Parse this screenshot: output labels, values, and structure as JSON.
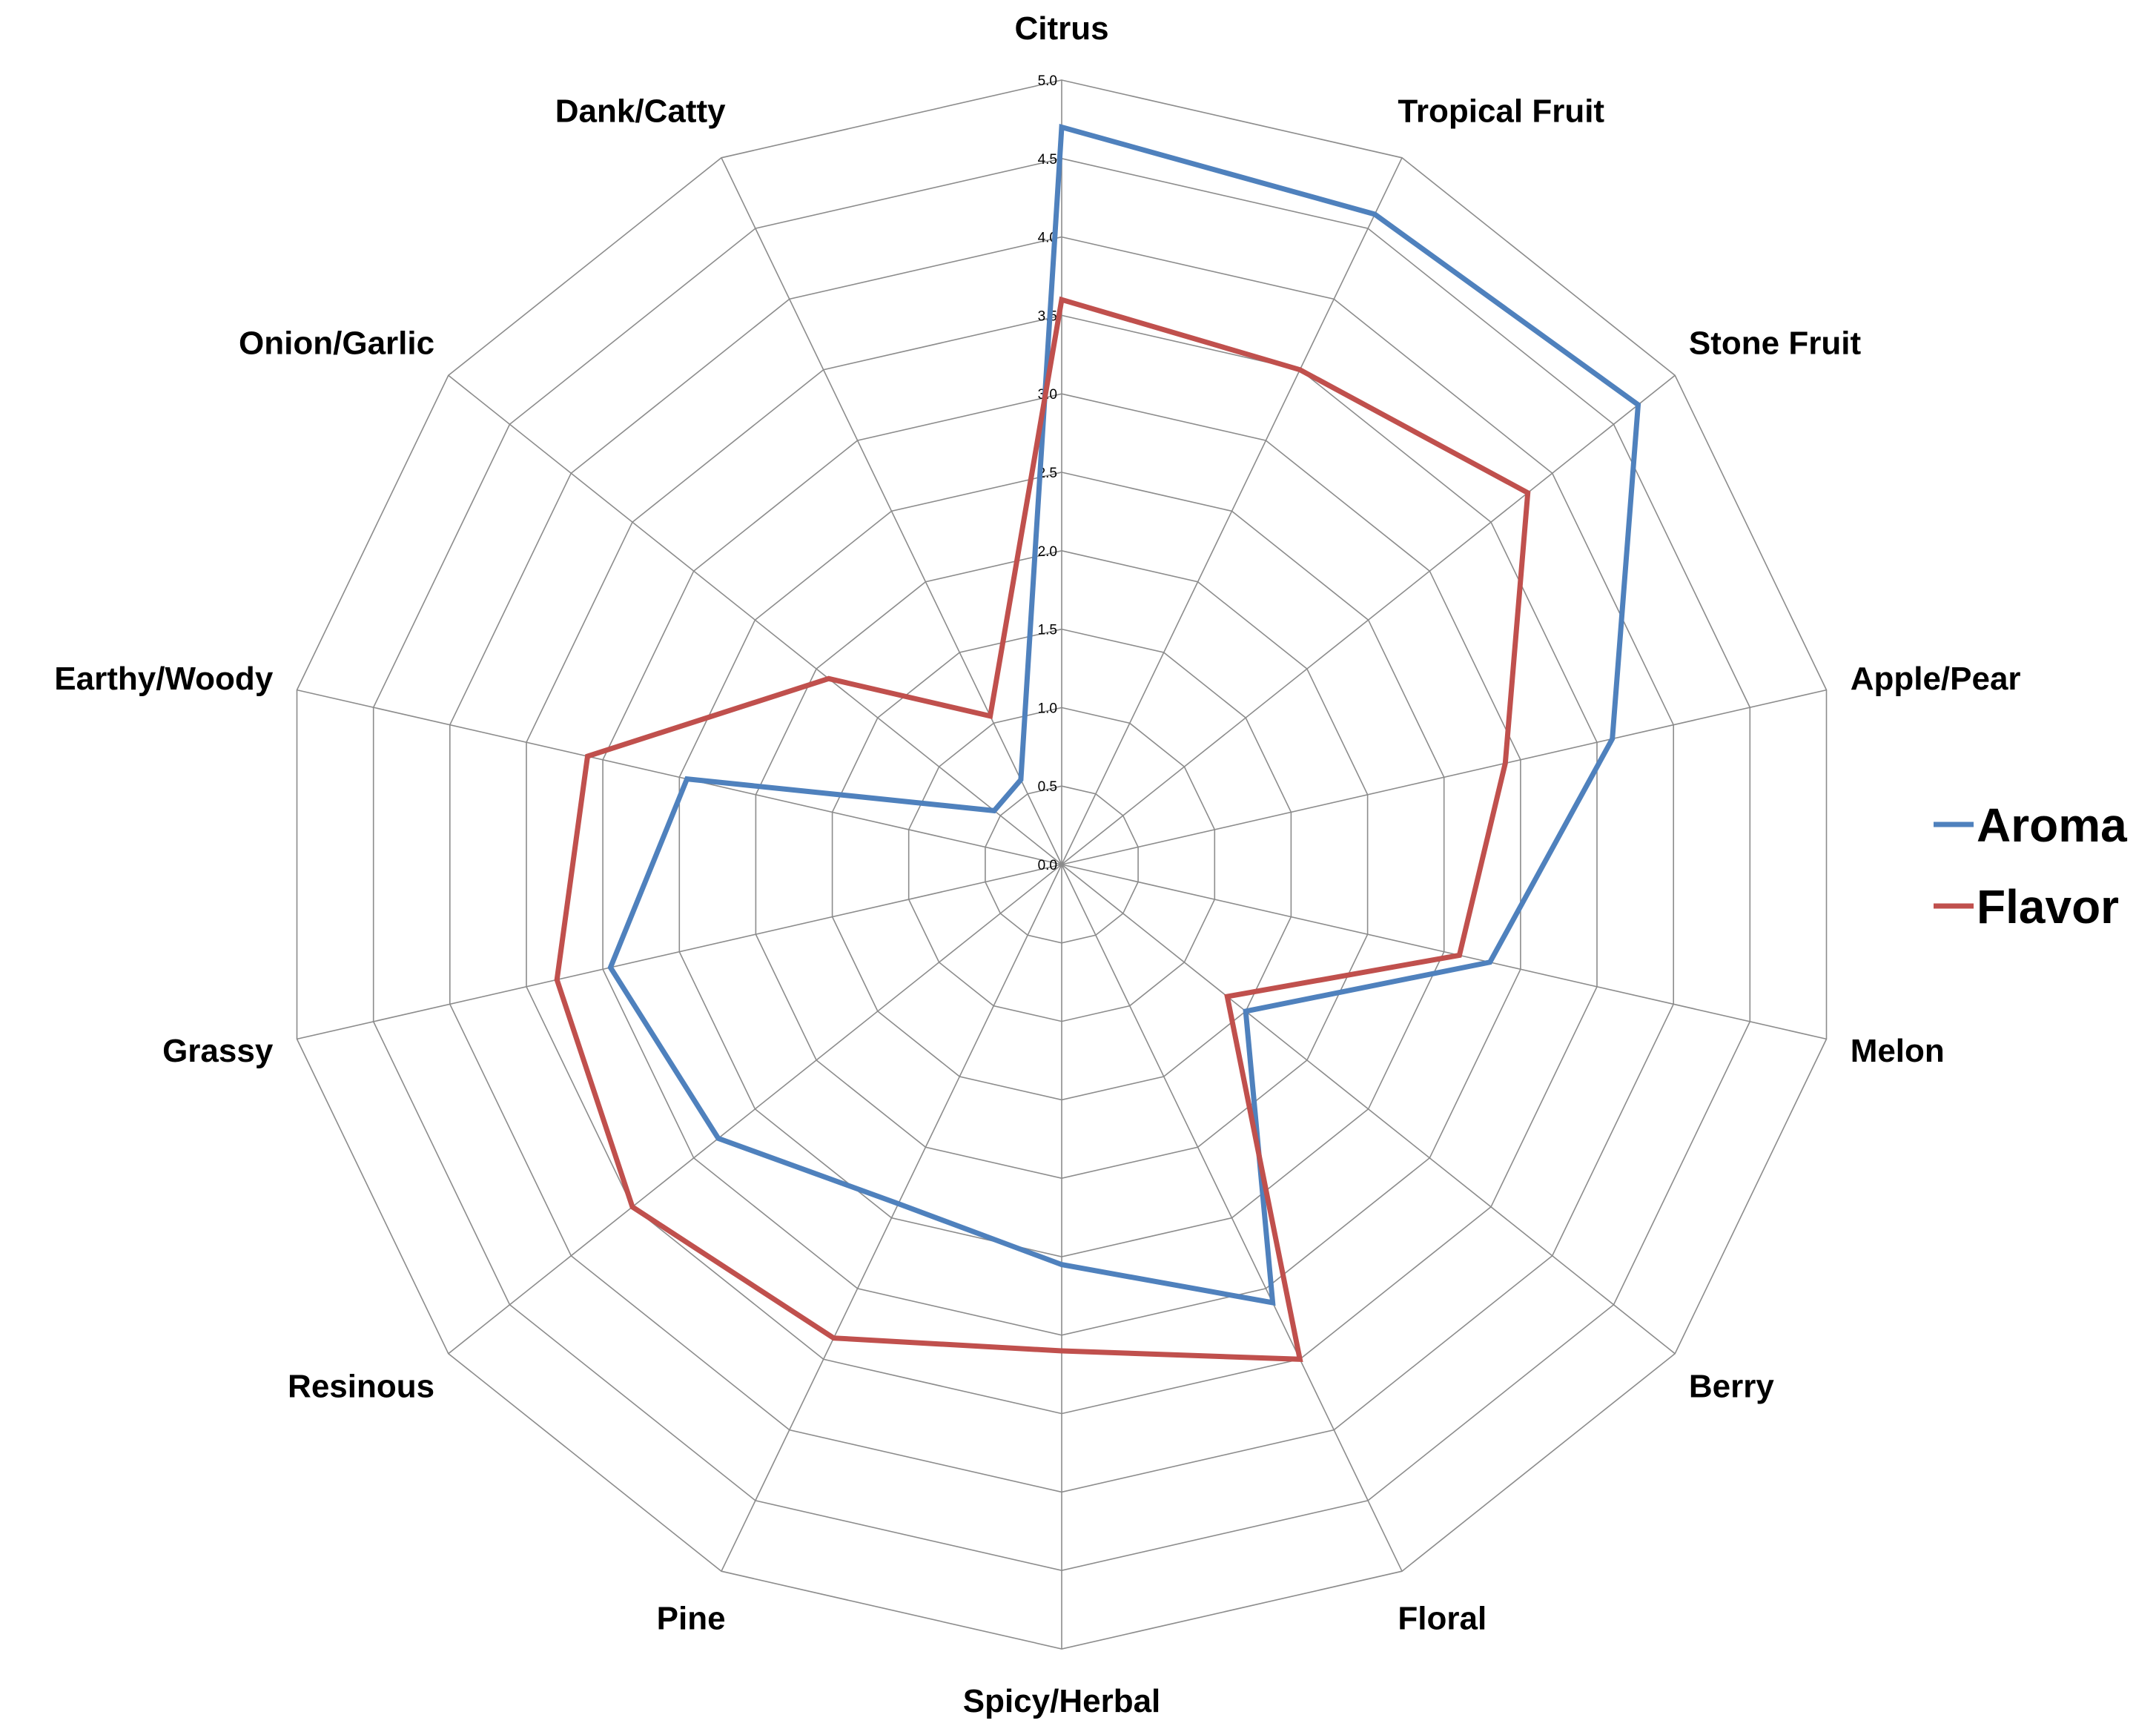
{
  "chart_data": {
    "type": "radar",
    "categories": [
      "Citrus",
      "Tropical Fruit",
      "Stone Fruit",
      "Apple/Pear",
      "Melon",
      "Berry",
      "Floral",
      "Spicy/Herbal",
      "Pine",
      "Resinous",
      "Grassy",
      "Earthy/Woody",
      "Onion/Garlic",
      "Dank/Catty"
    ],
    "axis_ticks": [
      "0.0",
      "0.5",
      "1.0",
      "1.5",
      "2.0",
      "2.5",
      "3.0",
      "3.5",
      "4.0",
      "4.5",
      "5.0"
    ],
    "rlim": [
      0,
      5
    ],
    "grid": true,
    "legend_position": "right",
    "series": [
      {
        "name": "Aroma",
        "color": "#4f81bd",
        "values": [
          4.7,
          4.6,
          4.7,
          3.6,
          2.8,
          1.5,
          3.1,
          2.55,
          2.4,
          2.8,
          2.95,
          2.45,
          0.55,
          0.6
        ]
      },
      {
        "name": "Flavor",
        "color": "#c0504d",
        "values": [
          3.6,
          3.5,
          3.8,
          2.9,
          2.6,
          1.35,
          3.5,
          3.1,
          3.35,
          3.5,
          3.3,
          3.1,
          1.9,
          1.05
        ]
      }
    ]
  }
}
